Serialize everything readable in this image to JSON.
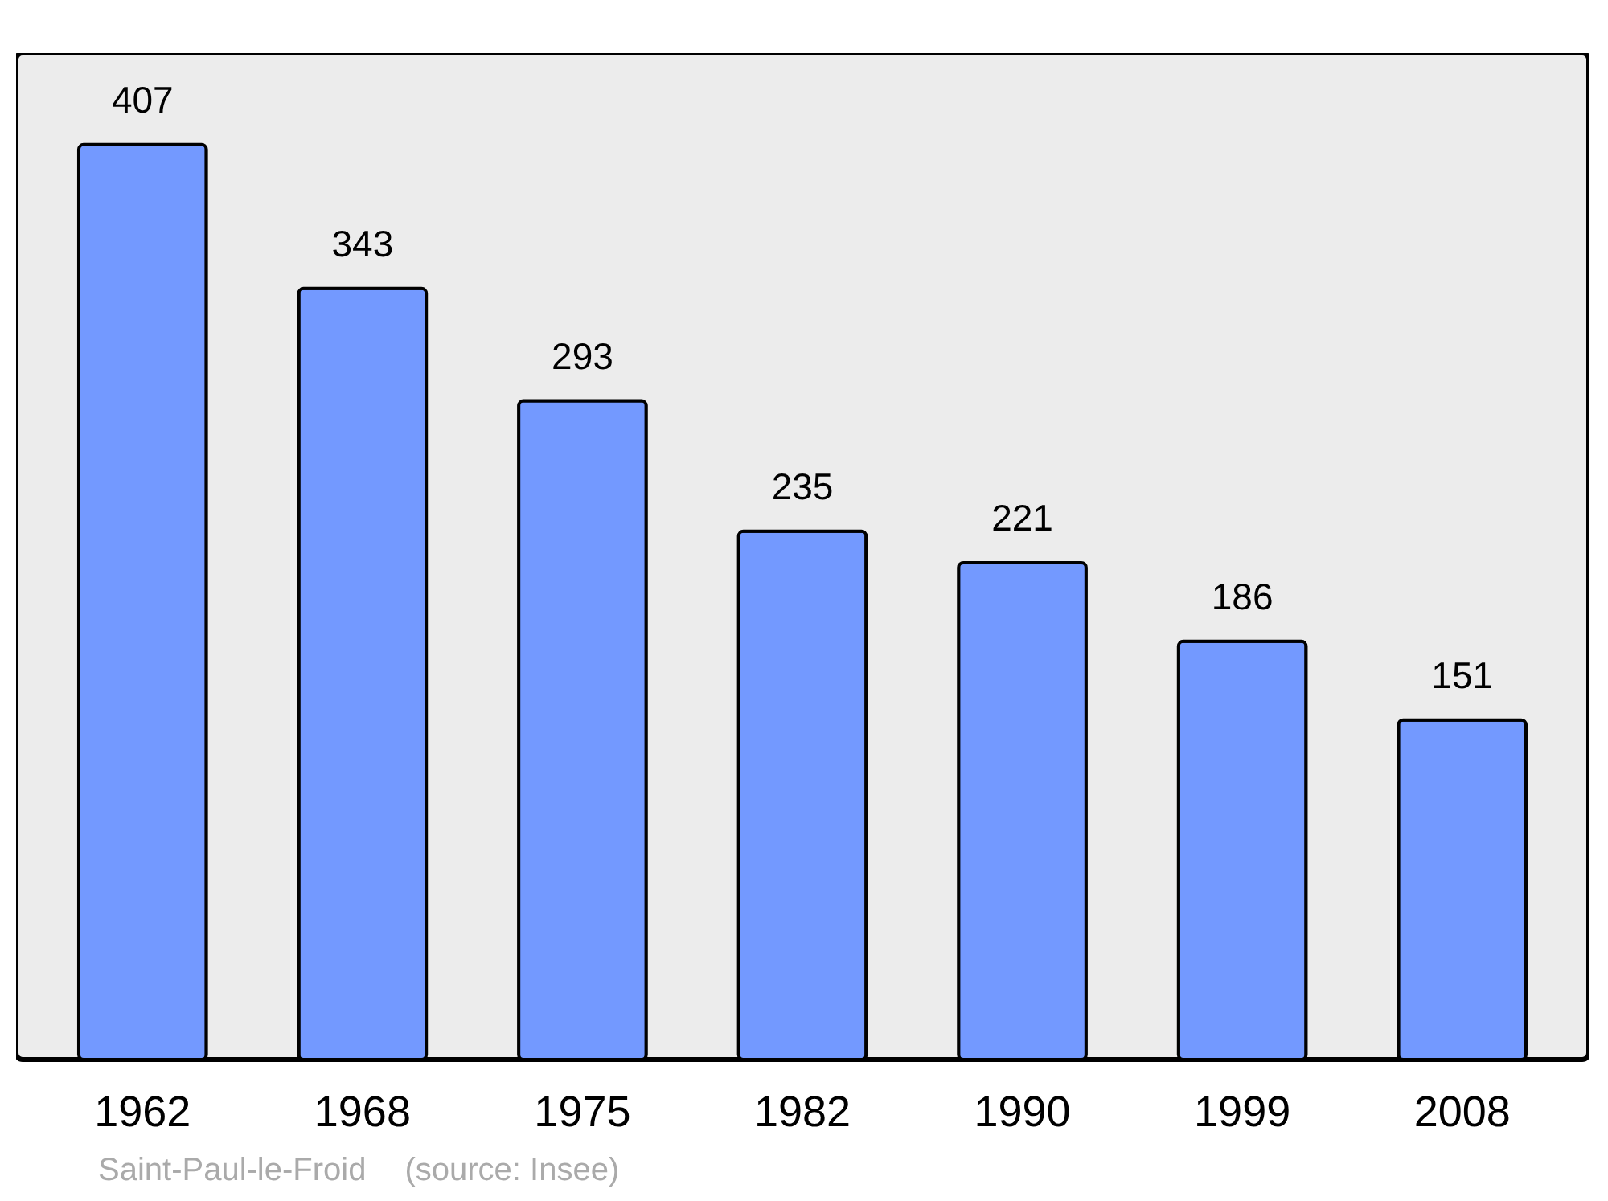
{
  "chart_data": {
    "type": "bar",
    "categories": [
      "1962",
      "1968",
      "1975",
      "1982",
      "1990",
      "1999",
      "2008"
    ],
    "values": [
      407,
      343,
      293,
      235,
      221,
      186,
      151
    ],
    "color": "#7399ff",
    "data_labels": true,
    "annotations": [
      "Saint-Paul-le-Froid",
      "(source: Insee)"
    ]
  }
}
